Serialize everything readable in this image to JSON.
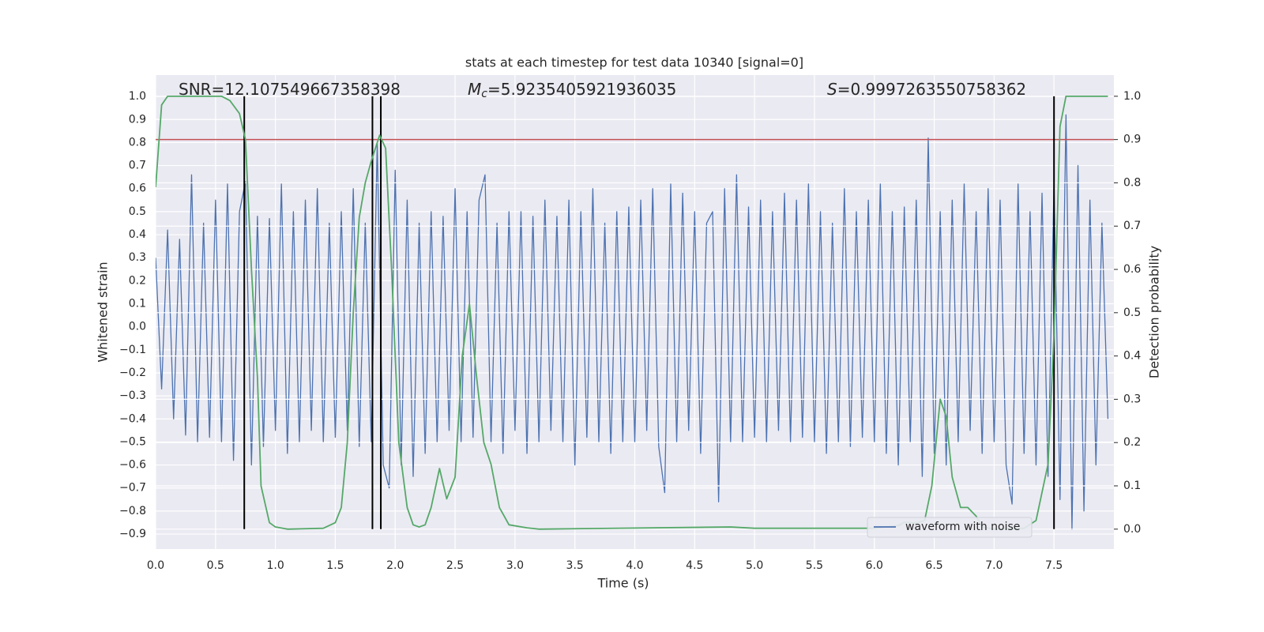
{
  "chart_data": {
    "type": "line",
    "title": "stats at each timestep for test data 10340 [signal=0]",
    "xlabel": "Time (s)",
    "ylabel": "Whitened strain",
    "y2label": "Detection probability",
    "xlim": [
      0,
      8.0
    ],
    "ylim": [
      -0.965,
      1.093
    ],
    "y2lim": [
      -0.046,
      1.049
    ],
    "xticks": [
      {
        "value": 0,
        "label": "0.0"
      },
      0.5,
      {
        "value": 1,
        "label": "1.0"
      },
      1.5,
      {
        "value": 2,
        "label": "2.0"
      },
      2.5,
      {
        "value": 3,
        "label": "3.0"
      },
      3.5,
      {
        "value": 4,
        "label": "4.0"
      },
      4.5,
      {
        "value": 5,
        "label": "5.0"
      },
      5.5,
      {
        "value": 6,
        "label": "6.0"
      },
      6.5,
      {
        "value": 7,
        "label": "7.0"
      },
      7.5
    ],
    "yticks": [
      {
        "value": -0.9,
        "label": "−0.9"
      },
      {
        "value": -0.8,
        "label": "−0.8"
      },
      {
        "value": -0.7,
        "label": "−0.7"
      },
      {
        "value": -0.6,
        "label": "−0.6"
      },
      {
        "value": -0.5,
        "label": "−0.5"
      },
      {
        "value": -0.4,
        "label": "−0.4"
      },
      {
        "value": -0.3,
        "label": "−0.3"
      },
      {
        "value": -0.2,
        "label": "−0.2"
      },
      {
        "value": -0.1,
        "label": "−0.1"
      },
      {
        "value": 0,
        "label": "0.0"
      },
      0.1,
      0.2,
      0.3,
      0.4,
      0.5,
      0.6,
      0.7,
      0.8,
      0.9,
      {
        "value": 1,
        "label": "1.0"
      }
    ],
    "y2ticks": [
      {
        "value": 0,
        "label": "0.0"
      },
      0.1,
      0.2,
      0.3,
      0.4,
      0.5,
      0.6,
      0.7,
      0.8,
      0.9,
      {
        "value": 1,
        "label": "1.0"
      }
    ],
    "grid": true,
    "legend": "lower right",
    "series": [
      {
        "name": "waveform with noise",
        "color": "#4c72b0",
        "x": [
          0,
          0.05,
          0.1,
          0.15,
          0.2,
          0.25,
          0.3,
          0.35,
          0.4,
          0.45,
          0.5,
          0.55,
          0.6,
          0.65,
          0.7,
          0.75,
          0.8,
          0.85,
          0.9,
          0.95,
          1.0,
          1.05,
          1.1,
          1.15,
          1.2,
          1.25,
          1.3,
          1.35,
          1.4,
          1.45,
          1.5,
          1.55,
          1.6,
          1.65,
          1.7,
          1.75,
          1.8,
          1.85,
          1.9,
          1.95,
          2.0,
          2.05,
          2.1,
          2.15,
          2.2,
          2.25,
          2.3,
          2.35,
          2.4,
          2.45,
          2.5,
          2.55,
          2.6,
          2.65,
          2.7,
          2.75,
          2.8,
          2.85,
          2.9,
          2.95,
          3.0,
          3.05,
          3.1,
          3.15,
          3.2,
          3.25,
          3.3,
          3.35,
          3.4,
          3.45,
          3.5,
          3.55,
          3.6,
          3.65,
          3.7,
          3.75,
          3.8,
          3.85,
          3.9,
          3.95,
          4.0,
          4.05,
          4.1,
          4.15,
          4.2,
          4.25,
          4.3,
          4.35,
          4.4,
          4.45,
          4.5,
          4.55,
          4.6,
          4.65,
          4.7,
          4.75,
          4.8,
          4.85,
          4.9,
          4.95,
          5.0,
          5.05,
          5.1,
          5.15,
          5.2,
          5.25,
          5.3,
          5.35,
          5.4,
          5.45,
          5.5,
          5.55,
          5.6,
          5.65,
          5.7,
          5.75,
          5.8,
          5.85,
          5.9,
          5.95,
          6.0,
          6.05,
          6.1,
          6.15,
          6.2,
          6.25,
          6.3,
          6.35,
          6.4,
          6.45,
          6.5,
          6.55,
          6.6,
          6.65,
          6.7,
          6.75,
          6.8,
          6.85,
          6.9,
          6.95,
          7.0,
          7.05,
          7.1,
          7.15,
          7.2,
          7.25,
          7.3,
          7.35,
          7.4,
          7.45,
          7.5,
          7.55,
          7.6,
          7.65,
          7.7,
          7.75,
          7.8,
          7.85,
          7.9,
          7.95
        ],
        "values": [
          0.3,
          -0.27,
          0.42,
          -0.4,
          0.38,
          -0.47,
          0.66,
          -0.5,
          0.45,
          -0.48,
          0.55,
          -0.5,
          0.62,
          -0.58,
          0.5,
          0.63,
          -0.6,
          0.48,
          -0.52,
          0.47,
          -0.45,
          0.62,
          -0.55,
          0.5,
          -0.5,
          0.55,
          -0.45,
          0.6,
          -0.5,
          0.45,
          -0.48,
          0.5,
          -0.45,
          0.6,
          -0.52,
          0.45,
          -0.5,
          0.8,
          -0.6,
          -0.7,
          0.68,
          -0.6,
          0.55,
          -0.65,
          0.45,
          -0.55,
          0.5,
          -0.5,
          0.48,
          -0.45,
          0.6,
          -0.5,
          0.5,
          -0.48,
          0.55,
          0.66,
          -0.5,
          0.45,
          -0.55,
          0.5,
          -0.45,
          0.5,
          -0.55,
          0.48,
          -0.5,
          0.55,
          -0.45,
          0.48,
          -0.5,
          0.55,
          -0.6,
          0.5,
          -0.48,
          0.6,
          -0.5,
          0.45,
          -0.55,
          0.5,
          -0.5,
          0.52,
          -0.5,
          0.55,
          -0.45,
          0.6,
          -0.52,
          -0.72,
          0.62,
          -0.5,
          0.58,
          -0.45,
          0.5,
          -0.55,
          0.45,
          0.5,
          -0.76,
          0.6,
          -0.5,
          0.66,
          -0.5,
          0.52,
          -0.48,
          0.55,
          -0.5,
          0.5,
          -0.45,
          0.58,
          -0.5,
          0.55,
          -0.48,
          0.62,
          -0.5,
          0.5,
          -0.55,
          0.45,
          -0.5,
          0.6,
          -0.52,
          0.5,
          -0.48,
          0.55,
          -0.5,
          0.62,
          -0.55,
          0.5,
          -0.6,
          0.52,
          -0.5,
          0.55,
          -0.65,
          0.82,
          -0.55,
          0.5,
          -0.6,
          0.55,
          -0.5,
          0.62,
          -0.45,
          0.5,
          -0.55,
          0.6,
          -0.5,
          0.55,
          -0.6,
          -0.77,
          0.62,
          -0.55,
          0.5,
          -0.6,
          0.58,
          -0.65,
          0.62,
          -0.75,
          0.92,
          -0.88,
          0.7,
          -0.8,
          0.55,
          -0.6,
          0.45,
          -0.4
        ]
      },
      {
        "color": "#55a868",
        "axis": "y2",
        "x": [
          0,
          0.05,
          0.1,
          0.55,
          0.62,
          0.7,
          0.75,
          0.8,
          0.85,
          0.88,
          0.95,
          1.0,
          1.1,
          1.4,
          1.5,
          1.55,
          1.6,
          1.65,
          1.7,
          1.75,
          1.8,
          1.87,
          1.92,
          1.97,
          2.03,
          2.1,
          2.15,
          2.2,
          2.25,
          2.3,
          2.37,
          2.43,
          2.5,
          2.56,
          2.62,
          2.68,
          2.74,
          2.8,
          2.87,
          2.95,
          3.1,
          3.2,
          3.5,
          4.8,
          5.0,
          6.0,
          6.2,
          6.25,
          6.35,
          6.42,
          6.48,
          6.55,
          6.6,
          6.65,
          6.72,
          6.78,
          6.85,
          6.9,
          7.0,
          7.25,
          7.35,
          7.45,
          7.5,
          7.55,
          7.6,
          7.95
        ],
        "values": [
          0.79,
          0.98,
          1.0,
          1.0,
          0.99,
          0.96,
          0.9,
          0.6,
          0.35,
          0.1,
          0.015,
          0.005,
          0.0,
          0.002,
          0.015,
          0.05,
          0.2,
          0.5,
          0.72,
          0.8,
          0.85,
          0.91,
          0.88,
          0.6,
          0.2,
          0.05,
          0.01,
          0.005,
          0.01,
          0.05,
          0.14,
          0.07,
          0.12,
          0.4,
          0.52,
          0.35,
          0.2,
          0.15,
          0.05,
          0.01,
          0.003,
          0.0,
          0.001,
          0.005,
          0.002,
          0.002,
          0.008,
          0.016,
          0.014,
          0.02,
          0.1,
          0.3,
          0.26,
          0.12,
          0.05,
          0.05,
          0.03,
          0.005,
          0.0,
          0.002,
          0.02,
          0.15,
          0.45,
          0.93,
          1.0,
          1.0
        ]
      }
    ],
    "hlines": [
      {
        "value": 0.9,
        "axis": "y2",
        "color": "#c44e52"
      }
    ],
    "vlines": {
      "x": [
        0.74,
        1.81,
        1.88,
        7.5
      ],
      "color": "#000000",
      "span": [
        0,
        1
      ],
      "axis": "y2"
    },
    "annotations": [
      {
        "text": "SNR=12.107549667358398"
      },
      {
        "symbol": "M",
        "sub": "c",
        "text": "=5.9235405921936035"
      },
      {
        "symbol": "S",
        "text": "=0.9997263550758362"
      }
    ]
  }
}
